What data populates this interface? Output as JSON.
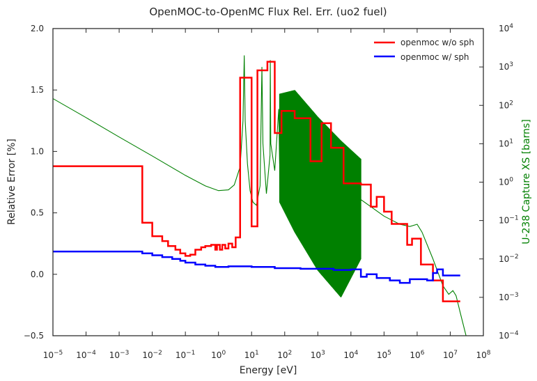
{
  "chart_data": {
    "type": "line",
    "title": "OpenMOC-to-OpenMC Flux Rel. Err. (uo2 fuel)",
    "xlabel": "Energy [eV]",
    "ylabel": "Relative Error [%]",
    "y2label": "U-238 Capture XS [barns]",
    "x_scale": "log",
    "xlim": [
      1e-05,
      100000000.0
    ],
    "ylim": [
      -0.5,
      2.0
    ],
    "y2_scale": "log",
    "y2lim": [
      0.0001,
      10000.0
    ],
    "x_ticks": [
      {
        "base": "10",
        "exp": "-5"
      },
      {
        "base": "10",
        "exp": "-4"
      },
      {
        "base": "10",
        "exp": "-3"
      },
      {
        "base": "10",
        "exp": "-2"
      },
      {
        "base": "10",
        "exp": "-1"
      },
      {
        "base": "10",
        "exp": "0"
      },
      {
        "base": "10",
        "exp": "1"
      },
      {
        "base": "10",
        "exp": "2"
      },
      {
        "base": "10",
        "exp": "3"
      },
      {
        "base": "10",
        "exp": "4"
      },
      {
        "base": "10",
        "exp": "5"
      },
      {
        "base": "10",
        "exp": "6"
      },
      {
        "base": "10",
        "exp": "7"
      },
      {
        "base": "10",
        "exp": "8"
      }
    ],
    "y_ticks": [
      "−0.5",
      "0.0",
      "0.5",
      "1.0",
      "1.5",
      "2.0"
    ],
    "y2_ticks": [
      {
        "base": "10",
        "exp": "-4"
      },
      {
        "base": "10",
        "exp": "-3"
      },
      {
        "base": "10",
        "exp": "-2"
      },
      {
        "base": "10",
        "exp": "-1"
      },
      {
        "base": "10",
        "exp": "0"
      },
      {
        "base": "10",
        "exp": "1"
      },
      {
        "base": "10",
        "exp": "2"
      },
      {
        "base": "10",
        "exp": "3"
      },
      {
        "base": "10",
        "exp": "4"
      }
    ],
    "legend_position": "top-right",
    "grid": false,
    "series": [
      {
        "name": "openmoc w/o sph",
        "color": "#ff0000",
        "style": "step",
        "axis": "left",
        "points": [
          [
            1e-05,
            0.88
          ],
          [
            0.005,
            0.88
          ],
          [
            0.005,
            0.42
          ],
          [
            0.01,
            0.42
          ],
          [
            0.01,
            0.31
          ],
          [
            0.02,
            0.31
          ],
          [
            0.02,
            0.27
          ],
          [
            0.03,
            0.27
          ],
          [
            0.03,
            0.23
          ],
          [
            0.05,
            0.23
          ],
          [
            0.05,
            0.2
          ],
          [
            0.07,
            0.2
          ],
          [
            0.07,
            0.17
          ],
          [
            0.1,
            0.17
          ],
          [
            0.1,
            0.15
          ],
          [
            0.14,
            0.15
          ],
          [
            0.14,
            0.16
          ],
          [
            0.2,
            0.16
          ],
          [
            0.2,
            0.2
          ],
          [
            0.3,
            0.2
          ],
          [
            0.3,
            0.22
          ],
          [
            0.4,
            0.22
          ],
          [
            0.4,
            0.23
          ],
          [
            0.6,
            0.23
          ],
          [
            0.6,
            0.24
          ],
          [
            0.8,
            0.24
          ],
          [
            0.8,
            0.2
          ],
          [
            0.9,
            0.2
          ],
          [
            0.9,
            0.24
          ],
          [
            1.1,
            0.24
          ],
          [
            1.1,
            0.2
          ],
          [
            1.3,
            0.2
          ],
          [
            1.3,
            0.24
          ],
          [
            1.6,
            0.24
          ],
          [
            1.6,
            0.21
          ],
          [
            2.0,
            0.21
          ],
          [
            2.0,
            0.25
          ],
          [
            2.6,
            0.25
          ],
          [
            2.6,
            0.22
          ],
          [
            3.3,
            0.22
          ],
          [
            3.3,
            0.3
          ],
          [
            4.5,
            0.3
          ],
          [
            4.5,
            1.6
          ],
          [
            10.0,
            1.6
          ],
          [
            10.0,
            0.39
          ],
          [
            15.0,
            0.39
          ],
          [
            15.0,
            1.66
          ],
          [
            30.0,
            1.66
          ],
          [
            30.0,
            1.73
          ],
          [
            50.0,
            1.73
          ],
          [
            50.0,
            1.15
          ],
          [
            80.0,
            1.15
          ],
          [
            80.0,
            1.33
          ],
          [
            200.0,
            1.33
          ],
          [
            200.0,
            1.27
          ],
          [
            600.0,
            1.27
          ],
          [
            600.0,
            0.92
          ],
          [
            1300.0,
            0.92
          ],
          [
            1300.0,
            1.23
          ],
          [
            2500.0,
            1.23
          ],
          [
            2500.0,
            1.03
          ],
          [
            6000.0,
            1.03
          ],
          [
            6000.0,
            0.74
          ],
          [
            20000.0,
            0.74
          ],
          [
            20000.0,
            0.73
          ],
          [
            40000.0,
            0.73
          ],
          [
            40000.0,
            0.55
          ],
          [
            60000.0,
            0.55
          ],
          [
            60000.0,
            0.63
          ],
          [
            100000.0,
            0.63
          ],
          [
            100000.0,
            0.51
          ],
          [
            170000.0,
            0.51
          ],
          [
            170000.0,
            0.41
          ],
          [
            500000.0,
            0.41
          ],
          [
            500000.0,
            0.24
          ],
          [
            700000.0,
            0.24
          ],
          [
            700000.0,
            0.29
          ],
          [
            1300000.0,
            0.29
          ],
          [
            1300000.0,
            0.08
          ],
          [
            3000000.0,
            0.08
          ],
          [
            3000000.0,
            -0.05
          ],
          [
            6000000.0,
            -0.05
          ],
          [
            6000000.0,
            -0.22
          ],
          [
            20000000.0,
            -0.22
          ]
        ]
      },
      {
        "name": "openmoc w/ sph",
        "color": "#0000ff",
        "style": "step",
        "axis": "left",
        "points": [
          [
            1e-05,
            0.185
          ],
          [
            0.005,
            0.185
          ],
          [
            0.005,
            0.17
          ],
          [
            0.01,
            0.17
          ],
          [
            0.01,
            0.155
          ],
          [
            0.02,
            0.155
          ],
          [
            0.02,
            0.14
          ],
          [
            0.04,
            0.14
          ],
          [
            0.04,
            0.125
          ],
          [
            0.07,
            0.125
          ],
          [
            0.07,
            0.11
          ],
          [
            0.1,
            0.11
          ],
          [
            0.1,
            0.095
          ],
          [
            0.2,
            0.095
          ],
          [
            0.2,
            0.08
          ],
          [
            0.4,
            0.08
          ],
          [
            0.4,
            0.07
          ],
          [
            0.8,
            0.07
          ],
          [
            0.8,
            0.06
          ],
          [
            2.0,
            0.06
          ],
          [
            2.0,
            0.065
          ],
          [
            10.0,
            0.065
          ],
          [
            10.0,
            0.06
          ],
          [
            50.0,
            0.06
          ],
          [
            50.0,
            0.05
          ],
          [
            300.0,
            0.05
          ],
          [
            300.0,
            0.045
          ],
          [
            3000.0,
            0.045
          ],
          [
            3000.0,
            0.035
          ],
          [
            10000.0,
            0.035
          ],
          [
            10000.0,
            0.04
          ],
          [
            20000.0,
            0.04
          ],
          [
            20000.0,
            -0.02
          ],
          [
            30000.0,
            -0.02
          ],
          [
            30000.0,
            0.0
          ],
          [
            60000.0,
            0.0
          ],
          [
            60000.0,
            -0.03
          ],
          [
            150000.0,
            -0.03
          ],
          [
            150000.0,
            -0.05
          ],
          [
            300000.0,
            -0.05
          ],
          [
            300000.0,
            -0.07
          ],
          [
            600000.0,
            -0.07
          ],
          [
            600000.0,
            -0.04
          ],
          [
            2000000.0,
            -0.04
          ],
          [
            2000000.0,
            -0.05
          ],
          [
            3000000.0,
            -0.05
          ],
          [
            3000000.0,
            0.01
          ],
          [
            4000000.0,
            0.01
          ],
          [
            4000000.0,
            0.04
          ],
          [
            6000000.0,
            0.04
          ],
          [
            6000000.0,
            -0.01
          ],
          [
            20000000.0,
            -0.01
          ]
        ]
      },
      {
        "name": "U-238 capture XS",
        "color": "#008000",
        "style": "line",
        "axis": "right",
        "smooth": [
          [
            1e-05,
            150.0
          ],
          [
            0.0001,
            48.0
          ],
          [
            0.001,
            15.0
          ],
          [
            0.01,
            4.8
          ],
          [
            0.1,
            1.5
          ],
          [
            0.4,
            0.8
          ],
          [
            1.0,
            0.6
          ],
          [
            2.0,
            0.63
          ],
          [
            3.0,
            0.85
          ],
          [
            4.5,
            2.5
          ],
          [
            5.5,
            40.0
          ],
          [
            6.0,
            2000.0
          ],
          [
            6.4,
            40.0
          ],
          [
            7.5,
            3.0
          ],
          [
            9.0,
            0.6
          ],
          [
            11.0,
            0.3
          ],
          [
            14.0,
            0.25
          ],
          [
            18.0,
            0.8
          ],
          [
            20.5,
            1000.0
          ],
          [
            22.0,
            10.0
          ],
          [
            28.0,
            0.5
          ],
          [
            36.0,
            5.0
          ],
          [
            36.7,
            1500.0
          ],
          [
            38.0,
            10.0
          ],
          [
            50.0,
            2.0
          ],
          [
            66.0,
            80.0
          ],
          [
            70.0,
            3.0
          ]
        ],
        "oscillation": {
          "start": 70.0,
          "end": 20000.0,
          "upper": [
            [
              70.0,
              200.0
            ],
            [
              200.0,
              250.0
            ],
            [
              1000.0,
              50.0
            ],
            [
              5000.0,
              12.0
            ],
            [
              20000.0,
              4.0
            ]
          ],
          "lower": [
            [
              70.0,
              0.3
            ],
            [
              200.0,
              0.05
            ],
            [
              1000.0,
              0.005
            ],
            [
              5000.0,
              0.001
            ],
            [
              20000.0,
              0.01
            ]
          ]
        },
        "tail": [
          [
            20000.0,
            0.35
          ],
          [
            50000.0,
            0.2
          ],
          [
            100000.0,
            0.13
          ],
          [
            300000.0,
            0.08
          ],
          [
            600000.0,
            0.07
          ],
          [
            1000000.0,
            0.08
          ],
          [
            1400000.0,
            0.05
          ],
          [
            3000000.0,
            0.01
          ],
          [
            6000000.0,
            0.002
          ],
          [
            9000000.0,
            0.0012
          ],
          [
            12000000.0,
            0.0015
          ],
          [
            15000000.0,
            0.0011
          ],
          [
            20000000.0,
            0.0004
          ],
          [
            30000000.0,
            0.0001
          ]
        ]
      }
    ]
  }
}
